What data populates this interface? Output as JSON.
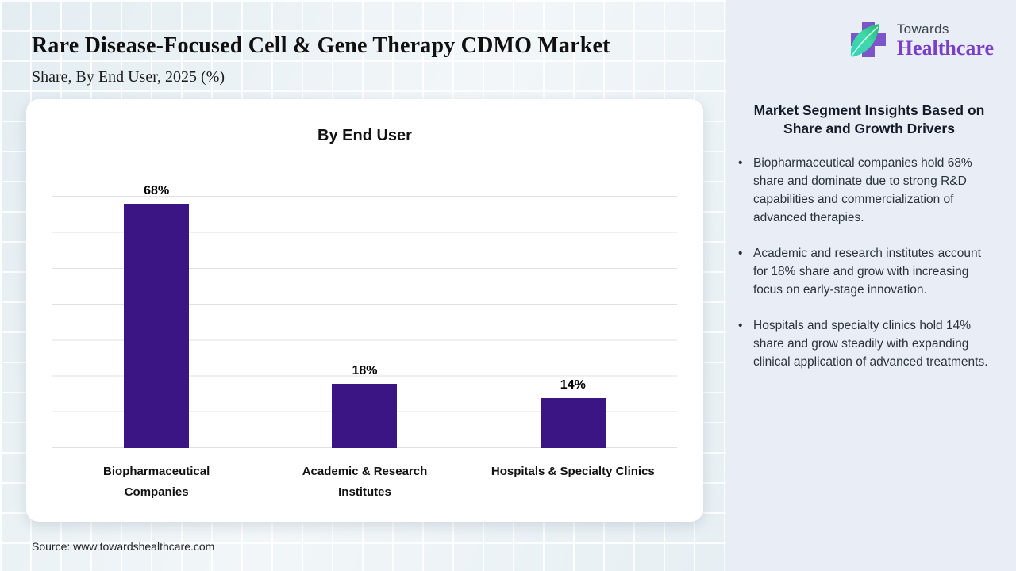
{
  "header": {
    "title": "Rare Disease-Focused Cell & Gene Therapy CDMO Market",
    "subtitle": "Share, By End User, 2025 (%)"
  },
  "logo": {
    "name_top": "Towards",
    "name_bottom": "Healthcare"
  },
  "chart_data": {
    "type": "bar",
    "title": "By End User",
    "categories": [
      "Biopharmaceutical Companies",
      "Academic & Research Institutes",
      "Hospitals & Specialty Clinics"
    ],
    "values": [
      68,
      18,
      14
    ],
    "data_labels": [
      "68%",
      "18%",
      "14%"
    ],
    "xlabel": "",
    "ylabel": "",
    "ylim": [
      0,
      80
    ],
    "gridline_step": 10,
    "grid": "horizontal-only",
    "legend": "none",
    "bar_color": "#3b1583"
  },
  "insights": {
    "heading": "Market Segment Insights Based on Share and Growth Drivers",
    "bullets": [
      "Biopharmaceutical companies hold 68% share and dominate due to strong R&D capabilities and commercialization of advanced therapies.",
      "Academic and research institutes account for 18% share and grow with increasing focus on early-stage innovation.",
      "Hospitals and specialty clinics hold 14% share and grow steadily with expanding clinical application of advanced treatments."
    ]
  },
  "footer": {
    "source": "Source: www.towardshealthcare.com"
  },
  "colors": {
    "bar": "#3b1583",
    "logo_purple": "#7a3fc9",
    "logo_cross_purple": "#7d55c8",
    "leaf_teal": "#35d0b8",
    "leaf_green": "#22b573",
    "panel_bg": "#e9eef6",
    "grid_bg": "#e2ecf1",
    "gridline": "#e1e1e1"
  }
}
